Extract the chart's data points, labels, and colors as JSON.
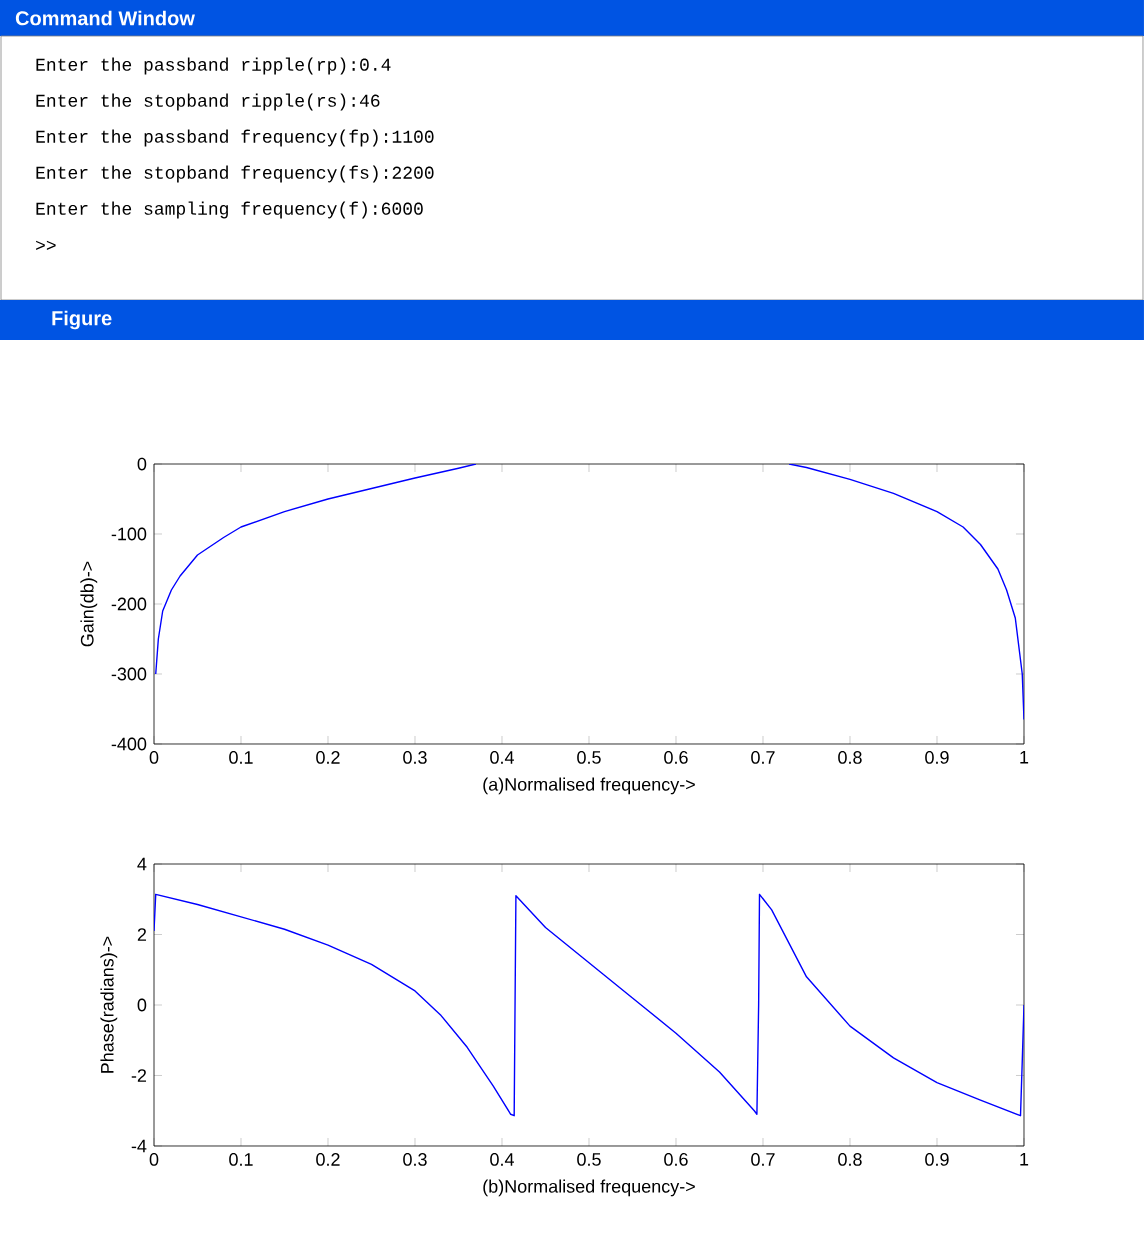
{
  "chart_data": [
    {
      "type": "line",
      "xlabel": "(a)Normalised frequency->",
      "ylabel": "Gain(db)->",
      "annotations": [
        "Command Window",
        "Enter the passband ripple(rp):0.4",
        "Enter the stopband ripple(rs):46",
        "Enter the passband frequency(fp):1100",
        "Enter the stopband frequency(fs):2200",
        "Enter the sampling frequency(f):6000",
        ">>",
        "Figure"
      ],
      "x": [
        0.002,
        0.005,
        0.01,
        0.02,
        0.03,
        0.05,
        0.08,
        0.1,
        0.15,
        0.2,
        0.25,
        0.3,
        0.35,
        0.37,
        0.55,
        0.73,
        0.75,
        0.8,
        0.85,
        0.9,
        0.93,
        0.95,
        0.97,
        0.98,
        0.99,
        0.995,
        0.998,
        1.0
      ],
      "series": [
        {
          "color": "#0000ff",
          "values": [
            -300,
            -250,
            -210,
            -180,
            -160,
            -130,
            -105,
            -90,
            -68,
            -50,
            -35,
            -20,
            -6,
            0,
            null,
            0,
            -5,
            -22,
            -42,
            -68,
            -90,
            -115,
            -150,
            -180,
            -220,
            -270,
            -300,
            -365
          ]
        }
      ],
      "xlim": [
        0,
        1
      ],
      "ylim": [
        -400,
        0
      ],
      "xticks": [
        0,
        0.1,
        0.2,
        0.3,
        0.4,
        0.5,
        0.6,
        0.7,
        0.8,
        0.9,
        1
      ],
      "yticks": [
        -400,
        -300,
        -200,
        -100,
        0
      ],
      "grid": false
    },
    {
      "type": "line",
      "xlabel": "(b)Normalised frequency->",
      "ylabel": "Phase(radians)->",
      "x": [
        0,
        0.002,
        0.05,
        0.1,
        0.15,
        0.2,
        0.25,
        0.3,
        0.33,
        0.36,
        0.39,
        0.41,
        0.414,
        0.415,
        0.416,
        0.45,
        0.5,
        0.55,
        0.6,
        0.65,
        0.69,
        0.693,
        0.695,
        0.696,
        0.71,
        0.75,
        0.8,
        0.85,
        0.9,
        0.95,
        0.996,
        0.998,
        1.0
      ],
      "series": [
        {
          "color": "#0000ff",
          "values": [
            2.1,
            3.14,
            2.85,
            2.5,
            2.15,
            1.7,
            1.15,
            0.4,
            -0.3,
            -1.2,
            -2.3,
            -3.1,
            -3.14,
            0,
            3.1,
            2.2,
            1.2,
            0.2,
            -0.8,
            -1.9,
            -3.0,
            -3.1,
            0,
            3.14,
            2.7,
            0.8,
            -0.6,
            -1.5,
            -2.2,
            -2.7,
            -3.14,
            -1.6,
            0
          ]
        }
      ],
      "xlim": [
        0,
        1
      ],
      "ylim": [
        -4,
        4
      ],
      "xticks": [
        0,
        0.1,
        0.2,
        0.3,
        0.4,
        0.5,
        0.6,
        0.7,
        0.8,
        0.9,
        1
      ],
      "yticks": [
        -4,
        -2,
        0,
        2,
        4
      ],
      "grid": false
    }
  ]
}
